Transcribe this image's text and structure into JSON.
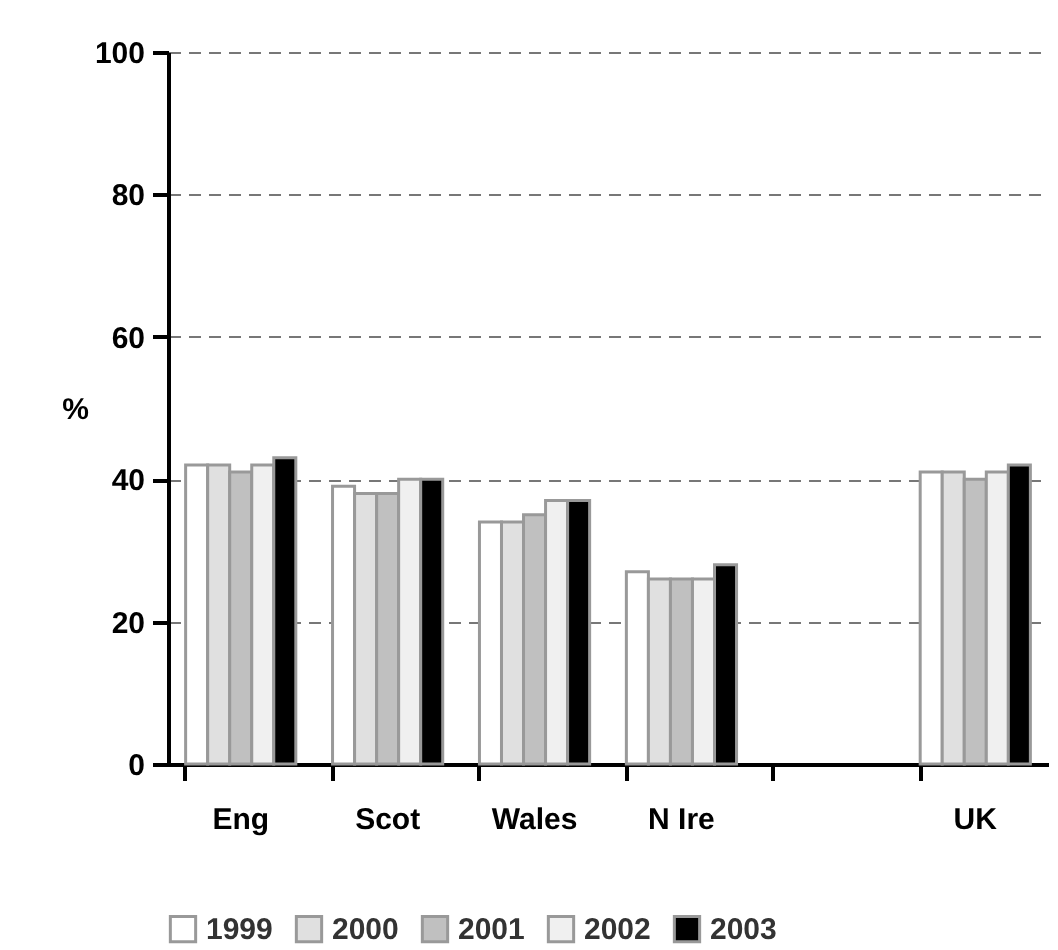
{
  "chart_data": {
    "type": "bar",
    "ylabel": "%",
    "categories": [
      "Eng",
      "Scot",
      "Wales",
      "N Ire",
      null,
      "UK"
    ],
    "series": [
      {
        "name": "1999",
        "color": "#ffffff",
        "values": [
          42,
          39,
          34,
          27,
          null,
          41
        ]
      },
      {
        "name": "2000",
        "color": "#e0e0e0",
        "values": [
          42,
          38,
          34,
          26,
          null,
          41
        ]
      },
      {
        "name": "2001",
        "color": "#c0c0c0",
        "values": [
          41,
          38,
          35,
          26,
          null,
          40
        ]
      },
      {
        "name": "2002",
        "color": "#f0f0f0",
        "values": [
          42,
          40,
          37,
          26,
          null,
          41
        ]
      },
      {
        "name": "2003",
        "color": "#000000",
        "values": [
          43,
          40,
          37,
          28,
          null,
          42
        ]
      }
    ],
    "ylim": [
      0,
      100
    ],
    "yticks": [
      0,
      20,
      40,
      60,
      80,
      100
    ],
    "grid": "y",
    "legend": "bottom"
  }
}
